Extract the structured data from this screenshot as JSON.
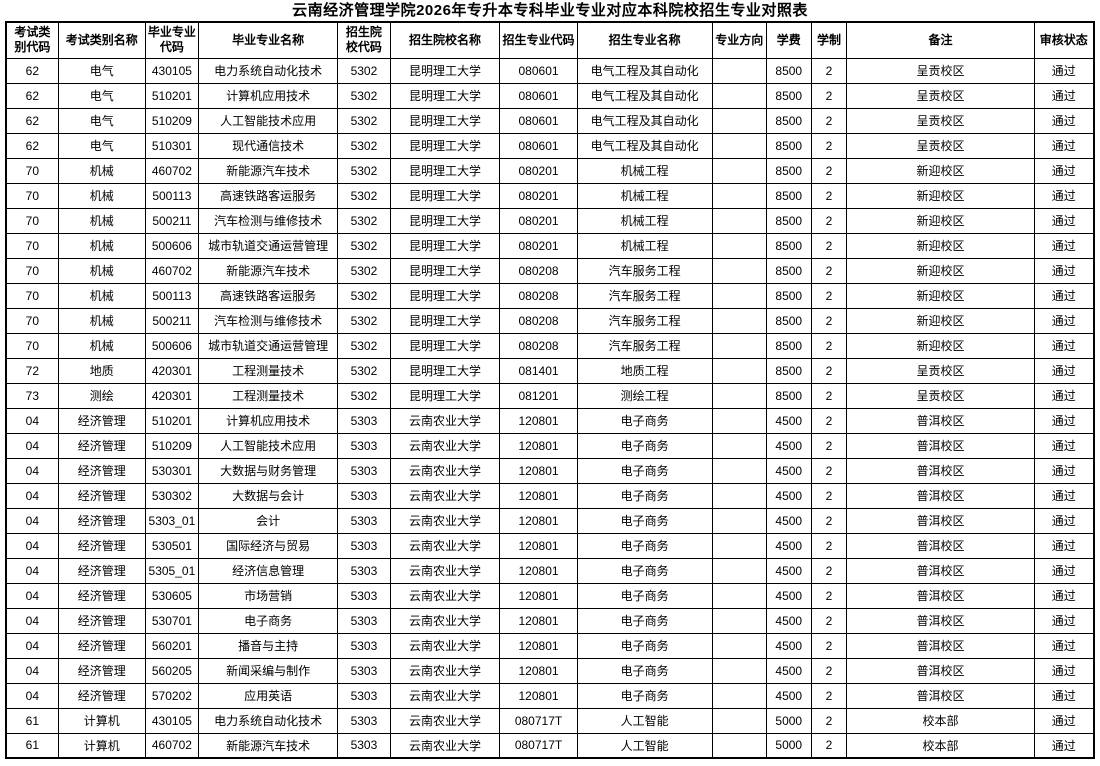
{
  "title": "云南经济管理学院2026年专升本专科毕业专业对应本科院校招生专业对照表",
  "colors": {
    "background": "#ffffff",
    "border": "#000000",
    "text": "#000000"
  },
  "table": {
    "columns": [
      "考试类别代码",
      "考试类别名称",
      "毕业专业代码",
      "毕业专业名称",
      "招生院校代码",
      "招生院校名称",
      "招生专业代码",
      "招生专业名称",
      "专业方向",
      "学费",
      "学制",
      "备注",
      "审核状态"
    ],
    "rows": [
      [
        "62",
        "电气",
        "430105",
        "电力系统自动化技术",
        "5302",
        "昆明理工大学",
        "080601",
        "电气工程及其自动化",
        "",
        "8500",
        "2",
        "呈贡校区",
        "通过"
      ],
      [
        "62",
        "电气",
        "510201",
        "计算机应用技术",
        "5302",
        "昆明理工大学",
        "080601",
        "电气工程及其自动化",
        "",
        "8500",
        "2",
        "呈贡校区",
        "通过"
      ],
      [
        "62",
        "电气",
        "510209",
        "人工智能技术应用",
        "5302",
        "昆明理工大学",
        "080601",
        "电气工程及其自动化",
        "",
        "8500",
        "2",
        "呈贡校区",
        "通过"
      ],
      [
        "62",
        "电气",
        "510301",
        "现代通信技术",
        "5302",
        "昆明理工大学",
        "080601",
        "电气工程及其自动化",
        "",
        "8500",
        "2",
        "呈贡校区",
        "通过"
      ],
      [
        "70",
        "机械",
        "460702",
        "新能源汽车技术",
        "5302",
        "昆明理工大学",
        "080201",
        "机械工程",
        "",
        "8500",
        "2",
        "新迎校区",
        "通过"
      ],
      [
        "70",
        "机械",
        "500113",
        "高速铁路客运服务",
        "5302",
        "昆明理工大学",
        "080201",
        "机械工程",
        "",
        "8500",
        "2",
        "新迎校区",
        "通过"
      ],
      [
        "70",
        "机械",
        "500211",
        "汽车检测与维修技术",
        "5302",
        "昆明理工大学",
        "080201",
        "机械工程",
        "",
        "8500",
        "2",
        "新迎校区",
        "通过"
      ],
      [
        "70",
        "机械",
        "500606",
        "城市轨道交通运营管理",
        "5302",
        "昆明理工大学",
        "080201",
        "机械工程",
        "",
        "8500",
        "2",
        "新迎校区",
        "通过"
      ],
      [
        "70",
        "机械",
        "460702",
        "新能源汽车技术",
        "5302",
        "昆明理工大学",
        "080208",
        "汽车服务工程",
        "",
        "8500",
        "2",
        "新迎校区",
        "通过"
      ],
      [
        "70",
        "机械",
        "500113",
        "高速铁路客运服务",
        "5302",
        "昆明理工大学",
        "080208",
        "汽车服务工程",
        "",
        "8500",
        "2",
        "新迎校区",
        "通过"
      ],
      [
        "70",
        "机械",
        "500211",
        "汽车检测与维修技术",
        "5302",
        "昆明理工大学",
        "080208",
        "汽车服务工程",
        "",
        "8500",
        "2",
        "新迎校区",
        "通过"
      ],
      [
        "70",
        "机械",
        "500606",
        "城市轨道交通运营管理",
        "5302",
        "昆明理工大学",
        "080208",
        "汽车服务工程",
        "",
        "8500",
        "2",
        "新迎校区",
        "通过"
      ],
      [
        "72",
        "地质",
        "420301",
        "工程测量技术",
        "5302",
        "昆明理工大学",
        "081401",
        "地质工程",
        "",
        "8500",
        "2",
        "呈贡校区",
        "通过"
      ],
      [
        "73",
        "测绘",
        "420301",
        "工程测量技术",
        "5302",
        "昆明理工大学",
        "081201",
        "测绘工程",
        "",
        "8500",
        "2",
        "呈贡校区",
        "通过"
      ],
      [
        "04",
        "经济管理",
        "510201",
        "计算机应用技术",
        "5303",
        "云南农业大学",
        "120801",
        "电子商务",
        "",
        "4500",
        "2",
        "普洱校区",
        "通过"
      ],
      [
        "04",
        "经济管理",
        "510209",
        "人工智能技术应用",
        "5303",
        "云南农业大学",
        "120801",
        "电子商务",
        "",
        "4500",
        "2",
        "普洱校区",
        "通过"
      ],
      [
        "04",
        "经济管理",
        "530301",
        "大数据与财务管理",
        "5303",
        "云南农业大学",
        "120801",
        "电子商务",
        "",
        "4500",
        "2",
        "普洱校区",
        "通过"
      ],
      [
        "04",
        "经济管理",
        "530302",
        "大数据与会计",
        "5303",
        "云南农业大学",
        "120801",
        "电子商务",
        "",
        "4500",
        "2",
        "普洱校区",
        "通过"
      ],
      [
        "04",
        "经济管理",
        "5303_01",
        "会计",
        "5303",
        "云南农业大学",
        "120801",
        "电子商务",
        "",
        "4500",
        "2",
        "普洱校区",
        "通过"
      ],
      [
        "04",
        "经济管理",
        "530501",
        "国际经济与贸易",
        "5303",
        "云南农业大学",
        "120801",
        "电子商务",
        "",
        "4500",
        "2",
        "普洱校区",
        "通过"
      ],
      [
        "04",
        "经济管理",
        "5305_01",
        "经济信息管理",
        "5303",
        "云南农业大学",
        "120801",
        "电子商务",
        "",
        "4500",
        "2",
        "普洱校区",
        "通过"
      ],
      [
        "04",
        "经济管理",
        "530605",
        "市场营销",
        "5303",
        "云南农业大学",
        "120801",
        "电子商务",
        "",
        "4500",
        "2",
        "普洱校区",
        "通过"
      ],
      [
        "04",
        "经济管理",
        "530701",
        "电子商务",
        "5303",
        "云南农业大学",
        "120801",
        "电子商务",
        "",
        "4500",
        "2",
        "普洱校区",
        "通过"
      ],
      [
        "04",
        "经济管理",
        "560201",
        "播音与主持",
        "5303",
        "云南农业大学",
        "120801",
        "电子商务",
        "",
        "4500",
        "2",
        "普洱校区",
        "通过"
      ],
      [
        "04",
        "经济管理",
        "560205",
        "新闻采编与制作",
        "5303",
        "云南农业大学",
        "120801",
        "电子商务",
        "",
        "4500",
        "2",
        "普洱校区",
        "通过"
      ],
      [
        "04",
        "经济管理",
        "570202",
        "应用英语",
        "5303",
        "云南农业大学",
        "120801",
        "电子商务",
        "",
        "4500",
        "2",
        "普洱校区",
        "通过"
      ],
      [
        "61",
        "计算机",
        "430105",
        "电力系统自动化技术",
        "5303",
        "云南农业大学",
        "080717T",
        "人工智能",
        "",
        "5000",
        "2",
        "校本部",
        "通过"
      ],
      [
        "61",
        "计算机",
        "460702",
        "新能源汽车技术",
        "5303",
        "云南农业大学",
        "080717T",
        "人工智能",
        "",
        "5000",
        "2",
        "校本部",
        "通过"
      ]
    ]
  }
}
